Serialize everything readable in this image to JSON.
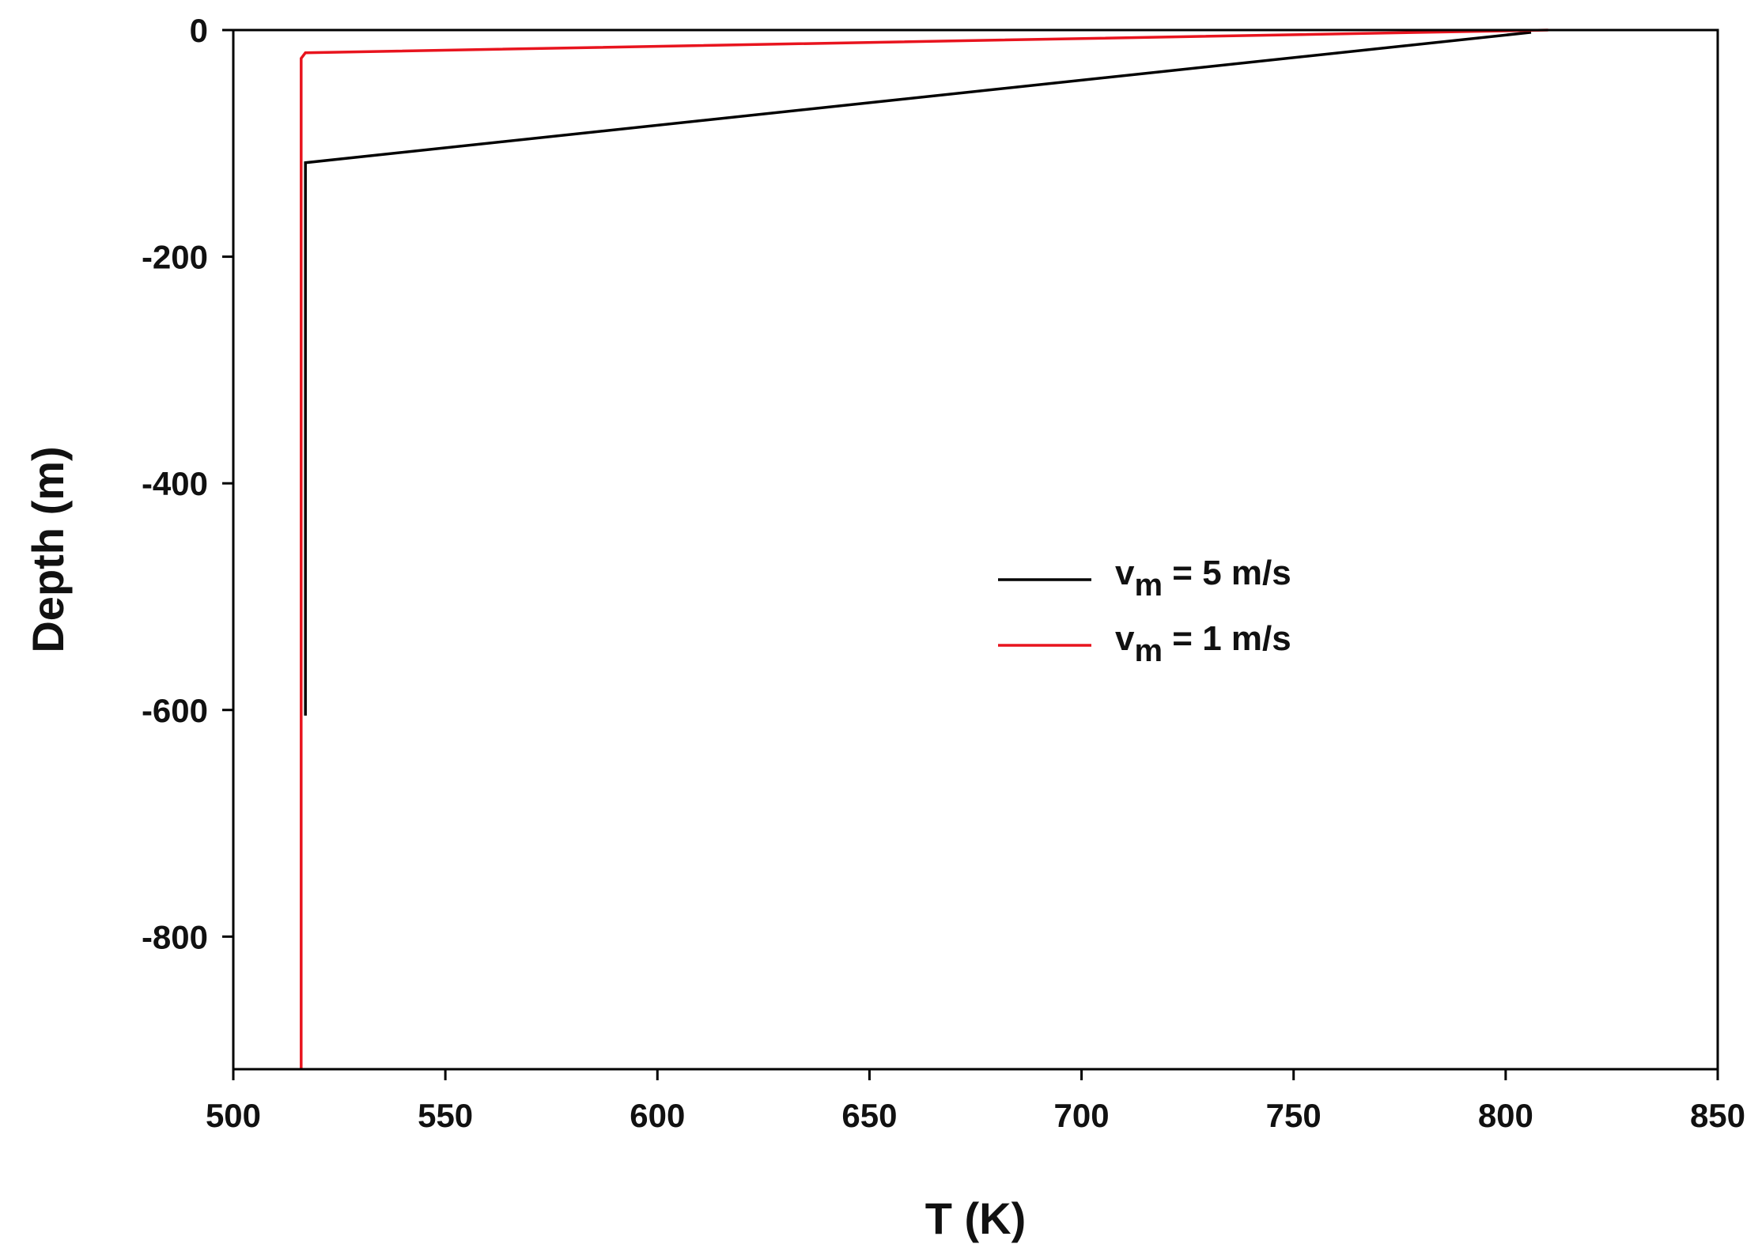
{
  "chart_data": {
    "type": "line",
    "title": "",
    "xlabel": "T (K)",
    "ylabel": "Depth (m)",
    "xlim": [
      500,
      850
    ],
    "ylim": [
      -917,
      0
    ],
    "xticks": [
      500,
      550,
      600,
      650,
      700,
      750,
      800,
      850
    ],
    "yticks": [
      0,
      -200,
      -400,
      -600,
      -800
    ],
    "xtick_labels": [
      "500",
      "550",
      "600",
      "650",
      "700",
      "750",
      "800",
      "850"
    ],
    "ytick_labels": [
      "0",
      "-200",
      "-400",
      "-600",
      "-800"
    ],
    "grid": false,
    "legend_position": "center-right",
    "series": [
      {
        "name_main": "v",
        "name_sub": "m",
        "name_rest": " = 5 m/s",
        "color": "#000000",
        "points": [
          [
            806,
            -2
          ],
          [
            517,
            -117
          ],
          [
            517,
            -605
          ]
        ]
      },
      {
        "name_main": "v",
        "name_sub": "m",
        "name_rest": " = 1 m/s",
        "color": "#e8141e",
        "points": [
          [
            810,
            0
          ],
          [
            517,
            -20
          ],
          [
            516,
            -25
          ],
          [
            516,
            -917
          ]
        ]
      }
    ]
  }
}
